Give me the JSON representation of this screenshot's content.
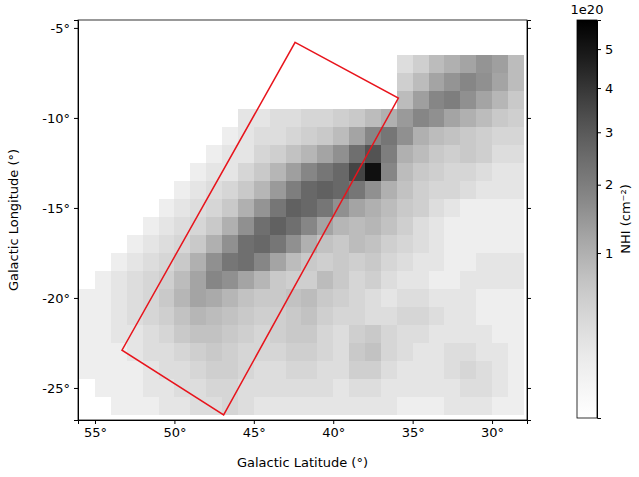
{
  "chart_data": {
    "type": "heatmap",
    "xlabel": "Galactic Latitude (°)",
    "ylabel": "Galactic Longitude (°)",
    "color": "Greys",
    "xlim": [
      56.07,
      27.8
    ],
    "ylim": [
      -26.78,
      -4.56
    ],
    "xticks": [
      {
        "value": 55,
        "label": "55°"
      },
      {
        "value": 50,
        "label": "50°"
      },
      {
        "value": 45,
        "label": "45°"
      },
      {
        "value": 40,
        "label": "40°"
      },
      {
        "value": 35,
        "label": "35°"
      },
      {
        "value": 30,
        "label": "30°"
      }
    ],
    "yticks": [
      {
        "value": -5,
        "label": "-5°"
      },
      {
        "value": -10,
        "label": "-10°"
      },
      {
        "value": -15,
        "label": "-15°"
      },
      {
        "value": -20,
        "label": "-20°"
      },
      {
        "value": -25,
        "label": "-25°"
      }
    ],
    "x": [
      55.5,
      54.5,
      53.5,
      52.5,
      51.5,
      50.5,
      49.5,
      48.5,
      47.5,
      46.5,
      45.5,
      44.5,
      43.5,
      42.5,
      41.5,
      40.5,
      39.5,
      38.5,
      37.5,
      36.5,
      35.5,
      34.5,
      33.5,
      32.5,
      31.5,
      30.5,
      29.5,
      28.5
    ],
    "y": [
      -5,
      -6,
      -7,
      -8,
      -9,
      -10,
      -11,
      -12,
      -13,
      -14,
      -15,
      -16,
      -17,
      -18,
      -19,
      -20,
      -21,
      -22,
      -23,
      -24,
      -25,
      -26
    ],
    "z": [
      [
        null,
        null,
        null,
        null,
        null,
        null,
        null,
        null,
        null,
        null,
        null,
        null,
        null,
        null,
        null,
        null,
        null,
        null,
        null,
        null,
        null,
        null,
        null,
        null,
        null,
        null,
        null,
        null
      ],
      [
        null,
        null,
        null,
        null,
        null,
        null,
        null,
        null,
        null,
        null,
        null,
        null,
        null,
        null,
        null,
        null,
        null,
        null,
        null,
        null,
        null,
        null,
        null,
        null,
        null,
        null,
        null,
        null
      ],
      [
        null,
        null,
        null,
        null,
        null,
        null,
        null,
        null,
        null,
        null,
        null,
        null,
        null,
        null,
        null,
        null,
        null,
        null,
        null,
        null,
        0.3,
        0.5,
        0.8,
        1.0,
        1.2,
        1.5,
        1.3,
        0.8
      ],
      [
        null,
        null,
        null,
        null,
        null,
        null,
        null,
        null,
        null,
        null,
        null,
        null,
        null,
        null,
        null,
        null,
        null,
        null,
        null,
        null,
        0.5,
        0.8,
        1.2,
        1.5,
        1.8,
        1.6,
        1.2,
        0.8
      ],
      [
        null,
        null,
        null,
        null,
        null,
        null,
        null,
        null,
        null,
        null,
        null,
        null,
        null,
        null,
        null,
        null,
        null,
        null,
        null,
        null,
        0.8,
        1.3,
        1.8,
        2.0,
        1.6,
        1.2,
        0.9,
        0.6
      ],
      [
        null,
        null,
        null,
        null,
        null,
        null,
        null,
        null,
        null,
        null,
        0.2,
        0.2,
        0.3,
        0.3,
        0.4,
        0.4,
        0.5,
        0.6,
        0.8,
        1.0,
        1.4,
        1.8,
        1.6,
        1.2,
        1.0,
        0.8,
        0.6,
        0.5
      ],
      [
        null,
        null,
        null,
        null,
        null,
        null,
        null,
        null,
        null,
        0.1,
        0.2,
        0.3,
        0.3,
        0.4,
        0.5,
        0.6,
        0.8,
        1.2,
        1.8,
        2.2,
        1.6,
        1.0,
        0.8,
        0.7,
        0.6,
        0.5,
        0.4,
        0.4
      ],
      [
        null,
        null,
        null,
        null,
        null,
        null,
        null,
        null,
        0.1,
        0.2,
        0.2,
        0.4,
        0.5,
        0.7,
        0.9,
        1.2,
        1.6,
        2.4,
        3.2,
        2.0,
        1.0,
        0.8,
        0.6,
        0.5,
        0.6,
        0.5,
        0.3,
        0.3
      ],
      [
        null,
        null,
        null,
        null,
        null,
        null,
        null,
        0.1,
        0.2,
        0.2,
        0.4,
        0.6,
        0.9,
        1.3,
        1.8,
        2.2,
        2.6,
        3.6,
        5.2,
        1.8,
        0.8,
        0.6,
        0.5,
        0.4,
        0.4,
        0.3,
        0.2,
        0.2
      ],
      [
        null,
        null,
        null,
        null,
        null,
        null,
        0.1,
        0.2,
        0.3,
        0.4,
        0.6,
        0.9,
        1.4,
        2.0,
        2.6,
        2.8,
        2.6,
        2.2,
        1.6,
        1.0,
        0.7,
        0.5,
        0.4,
        0.4,
        0.3,
        0.2,
        0.2,
        0.2
      ],
      [
        null,
        null,
        null,
        null,
        null,
        0.1,
        0.2,
        0.3,
        0.4,
        0.6,
        1.0,
        1.5,
        2.2,
        2.8,
        2.6,
        2.2,
        1.6,
        1.2,
        1.0,
        0.8,
        0.6,
        0.5,
        0.3,
        0.2,
        0.1,
        0.1,
        0.1,
        0.1
      ],
      [
        null,
        null,
        null,
        null,
        0.1,
        0.2,
        0.3,
        0.4,
        0.6,
        1.0,
        1.6,
        2.4,
        2.8,
        2.4,
        1.8,
        1.2,
        0.9,
        0.8,
        0.9,
        0.7,
        0.5,
        0.3,
        0.2,
        0.1,
        0.1,
        0.1,
        0.1,
        0.1
      ],
      [
        null,
        null,
        null,
        0.1,
        0.2,
        0.3,
        0.4,
        0.6,
        1.0,
        1.6,
        2.4,
        2.6,
        2.2,
        1.6,
        1.0,
        0.7,
        0.6,
        0.8,
        0.7,
        0.5,
        0.4,
        0.3,
        0.2,
        0.1,
        0.1,
        0.1,
        0.1,
        0.1
      ],
      [
        null,
        null,
        0.1,
        0.2,
        0.3,
        0.4,
        0.6,
        1.0,
        1.6,
        2.2,
        2.4,
        1.8,
        1.2,
        0.8,
        0.6,
        0.5,
        0.6,
        0.5,
        0.6,
        0.4,
        0.3,
        0.2,
        0.2,
        0.1,
        0.1,
        0.2,
        0.2,
        0.2
      ],
      [
        null,
        0.1,
        0.2,
        0.3,
        0.4,
        0.5,
        0.8,
        1.2,
        1.8,
        1.6,
        1.2,
        0.9,
        0.6,
        0.5,
        0.5,
        0.8,
        0.6,
        0.4,
        0.5,
        0.3,
        0.2,
        0.2,
        0.1,
        0.1,
        0.2,
        0.2,
        0.2,
        0.2
      ],
      [
        0.1,
        0.1,
        0.2,
        0.3,
        0.4,
        0.6,
        0.9,
        1.2,
        1.1,
        0.9,
        0.7,
        0.6,
        0.6,
        0.7,
        0.8,
        0.6,
        0.5,
        0.4,
        0.3,
        0.2,
        0.3,
        0.3,
        0.2,
        0.2,
        0.2,
        0.1,
        0.1,
        0.1
      ],
      [
        0.1,
        0.1,
        0.2,
        0.3,
        0.4,
        0.5,
        0.7,
        0.9,
        0.8,
        0.7,
        0.6,
        0.5,
        0.5,
        0.6,
        0.7,
        0.5,
        0.4,
        0.4,
        0.3,
        0.3,
        0.4,
        0.4,
        0.3,
        0.2,
        0.2,
        0.1,
        0.1,
        0.1
      ],
      [
        0.1,
        0.1,
        0.2,
        0.2,
        0.3,
        0.4,
        0.6,
        0.7,
        0.7,
        0.6,
        0.5,
        0.4,
        0.5,
        0.6,
        0.6,
        0.4,
        0.3,
        0.5,
        0.6,
        0.4,
        0.3,
        0.3,
        0.2,
        0.2,
        0.2,
        0.2,
        0.1,
        0.1
      ],
      [
        0.1,
        0.1,
        0.1,
        0.2,
        0.3,
        0.3,
        0.4,
        0.5,
        0.6,
        0.5,
        0.4,
        0.4,
        0.4,
        0.5,
        0.5,
        0.4,
        0.3,
        0.6,
        0.7,
        0.4,
        0.3,
        0.2,
        0.2,
        0.3,
        0.3,
        0.2,
        0.2,
        0.1
      ],
      [
        0.1,
        0.1,
        0.1,
        0.1,
        0.2,
        0.3,
        0.3,
        0.4,
        0.5,
        0.5,
        0.4,
        0.3,
        0.3,
        0.4,
        0.4,
        0.3,
        0.3,
        0.5,
        0.5,
        0.3,
        0.2,
        0.2,
        0.2,
        0.3,
        0.4,
        0.3,
        0.2,
        0.1
      ],
      [
        0,
        0.1,
        0.1,
        0.1,
        0.2,
        0.2,
        0.3,
        0.3,
        0.4,
        0.4,
        0.3,
        0.3,
        0.3,
        0.3,
        0.3,
        0.3,
        0.2,
        0.3,
        0.3,
        0.2,
        0.2,
        0.2,
        0.2,
        0.2,
        0.3,
        0.3,
        0.2,
        0.1
      ],
      [
        0,
        0,
        0.1,
        0.1,
        0.1,
        0.2,
        0.2,
        0.3,
        0.3,
        0.4,
        0.3,
        0.2,
        0.2,
        0.2,
        0.2,
        0.2,
        0.2,
        0.2,
        0.2,
        0.2,
        0.1,
        0.1,
        0.1,
        0.2,
        0.2,
        0.2,
        0.1,
        0.1
      ]
    ],
    "colorbar": {
      "label": "NHI (cm⁻²)",
      "offset_label": "1e20",
      "range": [
        0,
        5.82
      ],
      "ticks": [
        1,
        2,
        3,
        4,
        5
      ]
    },
    "region": {
      "x": [
        42.4,
        35.9,
        46.9,
        53.3
      ],
      "y": [
        -5.8,
        -8.9,
        -26.5,
        -22.9
      ],
      "color": "#e8141c"
    }
  }
}
